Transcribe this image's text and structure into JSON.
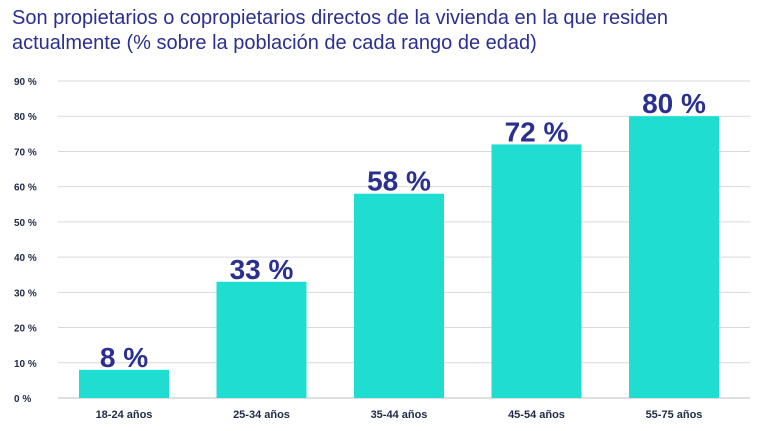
{
  "chart_data": {
    "type": "bar",
    "title": "Son propietarios o copropietarios directos de la vivienda en la que residen actualmente (% sobre la población de cada rango de edad)",
    "categories": [
      "18-24 años",
      "25-34 años",
      "35-44 años",
      "45-54 años",
      "55-75 años"
    ],
    "values": [
      8,
      33,
      58,
      72,
      80
    ],
    "data_labels": [
      "8 %",
      "33 %",
      "58 %",
      "72 %",
      "80 %"
    ],
    "yticks": [
      "0 %",
      "10 %",
      "20 %",
      "30 %",
      "40 %",
      "50 %",
      "60 %",
      "70 %",
      "80 %",
      "90 %"
    ],
    "ylim": [
      0,
      90
    ],
    "xlabel": "",
    "ylabel": "",
    "grid": true,
    "bar_color": "#1fded1",
    "label_color": "#2b2f8f"
  }
}
